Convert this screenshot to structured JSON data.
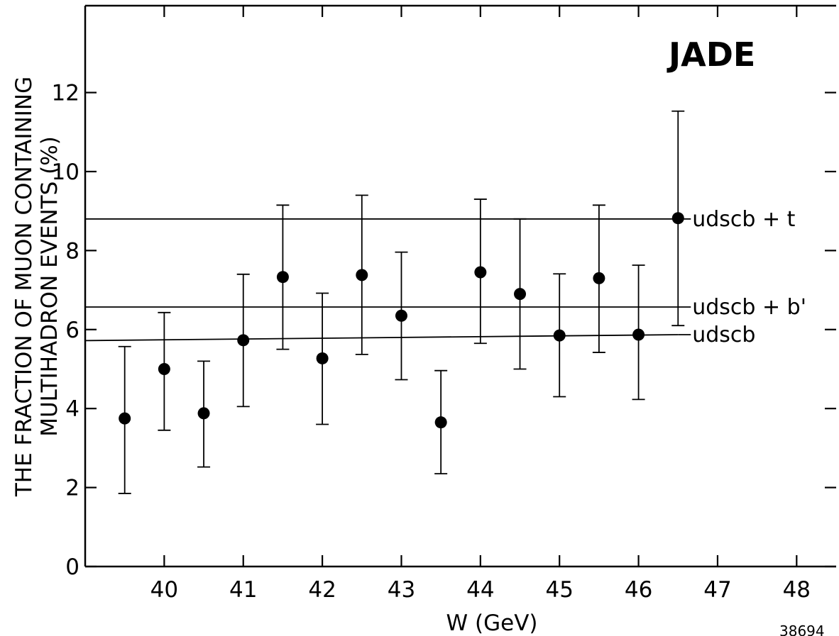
{
  "chart_data": {
    "type": "scatter",
    "title": "",
    "experiment_label": "JADE",
    "xlabel": "W (GeV)",
    "ylabel_line1": "THE FRACTION OF MUON CONTAINING",
    "ylabel_line2": "MULTIHADRON EVENTS (%)",
    "xlim": [
      39.0,
      48.5
    ],
    "ylim": [
      0,
      14.2
    ],
    "x_ticks": [
      40,
      41,
      42,
      43,
      44,
      45,
      46,
      47,
      48
    ],
    "y_ticks": [
      0,
      2,
      4,
      6,
      8,
      10,
      12
    ],
    "grid": false,
    "series": [
      {
        "x": [
          39.5,
          40.0,
          40.5,
          41.0,
          41.5,
          42.0,
          42.5,
          43.0,
          43.5,
          44.0,
          44.5,
          45.0,
          45.5,
          46.0,
          46.5
        ],
        "y": [
          3.75,
          5.0,
          3.88,
          5.73,
          7.33,
          5.27,
          7.38,
          6.35,
          3.65,
          7.45,
          6.9,
          5.85,
          7.3,
          5.87,
          8.82
        ],
        "y_low": [
          1.85,
          3.45,
          2.52,
          4.05,
          5.5,
          3.6,
          5.37,
          4.73,
          2.35,
          5.65,
          5.0,
          4.3,
          5.42,
          4.23,
          6.1
        ],
        "y_high": [
          5.57,
          6.43,
          5.2,
          7.4,
          9.15,
          6.92,
          9.4,
          7.96,
          4.96,
          9.3,
          8.8,
          7.41,
          9.15,
          7.63,
          11.53
        ]
      }
    ],
    "reference_lines": [
      {
        "label": "udscb + t",
        "x_start": 39.0,
        "x_end": 46.5,
        "y_start": 8.8,
        "y_end": 8.8
      },
      {
        "label": "udscb + b'",
        "x_start": 39.0,
        "x_end": 46.5,
        "y_start": 6.57,
        "y_end": 6.57
      },
      {
        "label": "udscb",
        "x_start": 39.0,
        "x_end": 46.5,
        "y_start": 5.72,
        "y_end": 5.87
      }
    ],
    "figure_number": "38694"
  }
}
